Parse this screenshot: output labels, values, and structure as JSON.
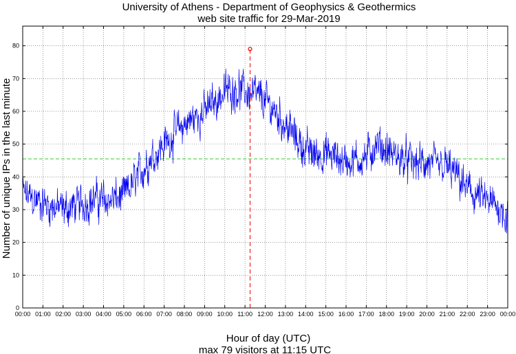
{
  "chart_data": {
    "type": "line",
    "title": "University of Athens - Department of Geophysics & Geothermics",
    "subtitle": "web site traffic for 29-Mar-2019",
    "xlabel": "Hour of day (UTC)",
    "annotation": "max 79 visitors at 11:15 UTC",
    "ylabel": "Number of unique IPs in the last minute",
    "x_tick_labels": [
      "00:00",
      "01:00",
      "02:00",
      "03:00",
      "04:00",
      "05:00",
      "06:00",
      "07:00",
      "08:00",
      "09:00",
      "10:00",
      "11:00",
      "12:00",
      "13:00",
      "14:00",
      "15:00",
      "16:00",
      "17:00",
      "18:00",
      "19:00",
      "20:00",
      "21:00",
      "22:00",
      "23:00",
      "00:00"
    ],
    "y_tick_labels": [
      "0",
      "10",
      "20",
      "30",
      "40",
      "50",
      "60",
      "70",
      "80"
    ],
    "xlim_hours": [
      0,
      24
    ],
    "ylim": [
      0,
      86
    ],
    "grid": true,
    "mean_line": 45.5,
    "max_marker": {
      "hour": 11.25,
      "value": 79
    },
    "series": [
      {
        "x_hours": [
          0,
          0.5,
          1,
          1.5,
          2,
          2.5,
          3,
          3.5,
          4,
          4.5,
          5,
          5.5,
          6,
          6.5,
          7,
          7.5,
          8,
          8.5,
          9,
          9.5,
          10,
          10.5,
          11,
          11.5,
          12,
          12.5,
          13,
          13.5,
          14,
          14.5,
          15,
          15.5,
          16,
          16.5,
          17,
          17.5,
          18,
          18.5,
          19,
          19.5,
          20,
          20.5,
          21,
          21.5,
          22,
          22.5,
          23,
          23.5,
          24
        ],
        "values": [
          35,
          33,
          32,
          31,
          30,
          31,
          32,
          33,
          33,
          33,
          34,
          38,
          43,
          47,
          50,
          53,
          56,
          58,
          60,
          63,
          66,
          67,
          66,
          65,
          63,
          60,
          56,
          52,
          48,
          47,
          47,
          46,
          45,
          45,
          46,
          50,
          48,
          46,
          45,
          44,
          44,
          43,
          43,
          40,
          36,
          34,
          32,
          31,
          28
        ]
      }
    ],
    "colors": {
      "line": "#0000ee",
      "mean_line": "#33cc33",
      "max_marker": "#ee0000",
      "grid": "#555555"
    }
  }
}
